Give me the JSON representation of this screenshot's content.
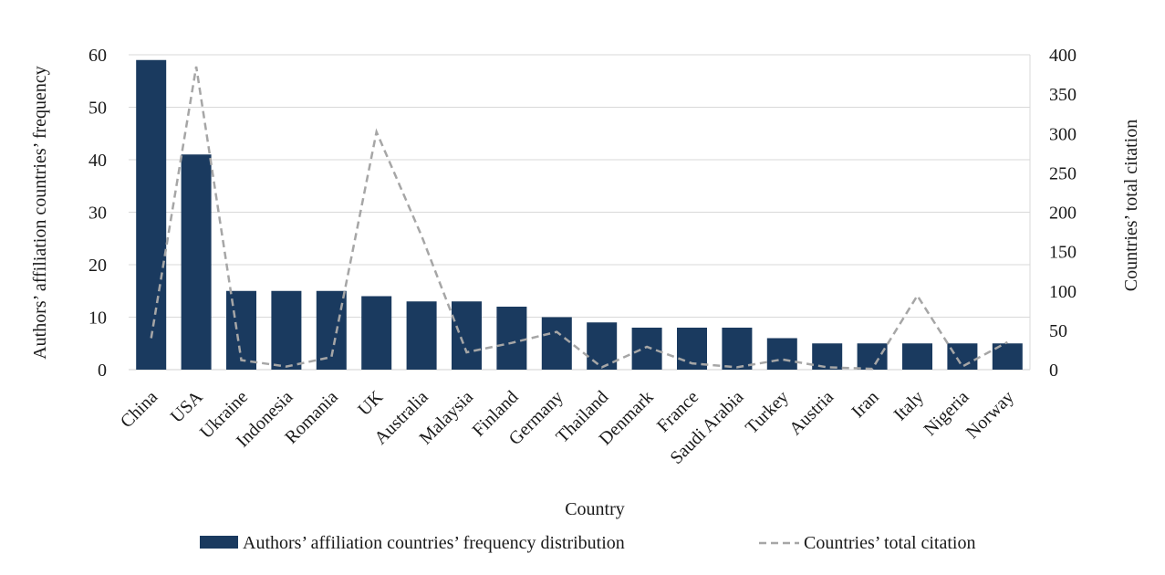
{
  "chart_data": {
    "type": "bar",
    "categories": [
      "China",
      "USA",
      "Ukraine",
      "Indonesia",
      "Romania",
      "UK",
      "Australia",
      "Malaysia",
      "Finland",
      "Germany",
      "Thailand",
      "Denmark",
      "France",
      "Saudi Arabia",
      "Turkey",
      "Austria",
      "Iran",
      "Italy",
      "Nigeria",
      "Norway"
    ],
    "series": [
      {
        "name": "Authors’ affiliation countries’ frequency distribution",
        "type": "bar",
        "axis": "left",
        "color": "#1a3a5f",
        "values": [
          59,
          41,
          15,
          15,
          15,
          14,
          13,
          13,
          12,
          10,
          9,
          8,
          8,
          8,
          6,
          5,
          5,
          5,
          5,
          5
        ]
      },
      {
        "name": "Countries’ total citation",
        "type": "line",
        "style": "dashed",
        "axis": "right",
        "color": "#a6a6a6",
        "values": [
          40,
          385,
          12,
          4,
          16,
          302,
          170,
          22,
          34,
          48,
          3,
          29,
          8,
          3,
          13,
          3,
          1,
          94,
          4,
          35
        ]
      }
    ],
    "xlabel": "Country",
    "ylabel": "Authors’ affiliation countries’ frequency",
    "y2label": "Countries’ total citation",
    "ylim": [
      0,
      60
    ],
    "yticks": [
      "0",
      "10",
      "20",
      "30",
      "40",
      "50",
      "60"
    ],
    "y2lim": [
      0,
      400
    ],
    "y2ticks": [
      "0",
      "50",
      "100",
      "150",
      "200",
      "250",
      "300",
      "350",
      "400"
    ],
    "grid": true,
    "legend": "bottom"
  }
}
